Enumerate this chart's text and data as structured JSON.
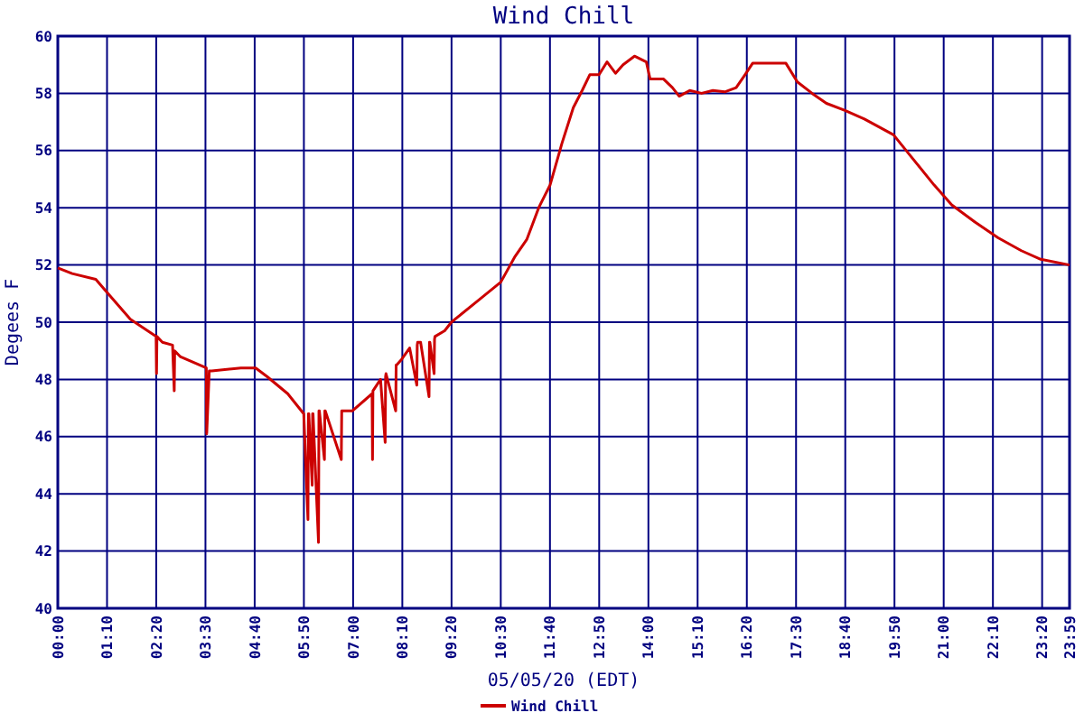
{
  "chart_data": {
    "type": "line",
    "title": "Wind Chill",
    "xlabel": "05/05/20 (EDT)",
    "ylabel": "Degees F",
    "xlim": [
      0,
      23.9833
    ],
    "ylim": [
      40,
      60
    ],
    "xticks": [
      {
        "value": 0,
        "label": "00:00"
      },
      {
        "value": 1.1667,
        "label": "01:10"
      },
      {
        "value": 2.3333,
        "label": "02:20"
      },
      {
        "value": 3.5,
        "label": "03:30"
      },
      {
        "value": 4.6667,
        "label": "04:40"
      },
      {
        "value": 5.8333,
        "label": "05:50"
      },
      {
        "value": 7,
        "label": "07:00"
      },
      {
        "value": 8.1667,
        "label": "08:10"
      },
      {
        "value": 9.3333,
        "label": "09:20"
      },
      {
        "value": 10.5,
        "label": "10:30"
      },
      {
        "value": 11.6667,
        "label": "11:40"
      },
      {
        "value": 12.8333,
        "label": "12:50"
      },
      {
        "value": 14,
        "label": "14:00"
      },
      {
        "value": 15.1667,
        "label": "15:10"
      },
      {
        "value": 16.3333,
        "label": "16:20"
      },
      {
        "value": 17.5,
        "label": "17:30"
      },
      {
        "value": 18.6667,
        "label": "18:40"
      },
      {
        "value": 19.8333,
        "label": "19:50"
      },
      {
        "value": 21,
        "label": "21:00"
      },
      {
        "value": 22.1667,
        "label": "22:10"
      },
      {
        "value": 23.3333,
        "label": "23:20"
      },
      {
        "value": 23.9833,
        "label": "23:59"
      }
    ],
    "yticks": [
      40,
      42,
      44,
      46,
      48,
      50,
      52,
      54,
      56,
      58,
      60
    ],
    "grid": true,
    "legend": "bottom",
    "marker": "none",
    "line_style": "solid",
    "series": [
      {
        "name": "Wind Chill",
        "color": "#cc0000",
        "x": [
          0,
          0.34,
          0.9,
          1.19,
          1.72,
          2.33,
          2.34,
          2.35,
          2.48,
          2.72,
          2.76,
          2.77,
          2.9,
          3.52,
          3.53,
          3.59,
          3.65,
          4.34,
          4.69,
          4.96,
          5.45,
          5.83,
          5.93,
          5.94,
          5.95,
          6.03,
          6.04,
          6.05,
          6.18,
          6.19,
          6.2,
          6.32,
          6.33,
          6.34,
          6.72,
          6.73,
          6.74,
          6.98,
          7.45,
          7.46,
          7.47,
          7.65,
          7.76,
          7.77,
          7.78,
          8.01,
          8.02,
          8.03,
          8.15,
          8.34,
          8.51,
          8.52,
          8.53,
          8.6,
          8.8,
          8.81,
          8.82,
          8.92,
          8.93,
          8.94,
          9.17,
          9.33,
          10.0,
          10.5,
          10.84,
          11.12,
          11.4,
          11.67,
          11.95,
          12.22,
          12.43,
          12.61,
          12.83,
          13.02,
          13.22,
          13.4,
          13.67,
          13.95,
          14.04,
          14.36,
          14.57,
          14.73,
          14.98,
          15.26,
          15.53,
          15.81,
          16.08,
          16.29,
          16.47,
          17.26,
          17.53,
          17.88,
          18.22,
          18.66,
          19.12,
          19.81,
          20.22,
          20.77,
          21.19,
          21.74,
          22.29,
          22.84,
          23.3,
          23.9833
        ],
        "values": [
          51.9,
          51.7,
          51.5,
          51.0,
          50.1,
          49.5,
          48.2,
          49.5,
          49.3,
          49.2,
          47.6,
          49.0,
          48.8,
          48.4,
          46.1,
          48.3,
          48.3,
          48.4,
          48.4,
          48.1,
          47.5,
          46.8,
          43.1,
          46.8,
          46.8,
          44.3,
          46.8,
          46.8,
          42.3,
          46.9,
          46.9,
          45.2,
          46.9,
          46.9,
          45.2,
          46.9,
          46.9,
          46.9,
          47.5,
          45.2,
          47.6,
          48.0,
          45.8,
          48.1,
          48.2,
          46.9,
          48.5,
          48.5,
          48.7,
          49.1,
          47.8,
          49.2,
          49.3,
          49.3,
          47.4,
          49.3,
          49.3,
          48.2,
          49.4,
          49.5,
          49.7,
          50.0,
          50.8,
          51.4,
          52.3,
          52.9,
          54.0,
          54.8,
          56.25,
          57.5,
          58.1,
          58.65,
          58.65,
          59.1,
          58.7,
          59.0,
          59.3,
          59.1,
          58.5,
          58.5,
          58.2,
          57.9,
          58.1,
          58.0,
          58.1,
          58.05,
          58.2,
          58.65,
          59.05,
          59.05,
          58.4,
          58.0,
          57.65,
          57.4,
          57.1,
          56.55,
          55.8,
          54.8,
          54.1,
          53.5,
          52.95,
          52.5,
          52.2,
          52.0
        ]
      }
    ]
  }
}
